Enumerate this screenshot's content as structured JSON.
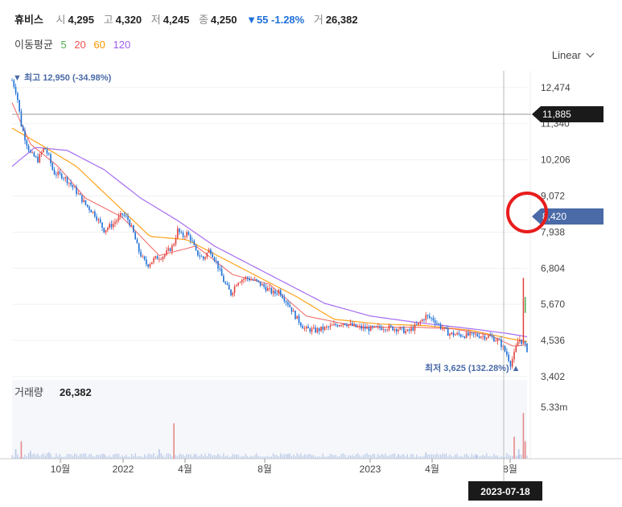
{
  "header": {
    "name": "휴비스",
    "open_label": "시",
    "open": "4,295",
    "high_label": "고",
    "high": "4,320",
    "low_label": "저",
    "low": "4,245",
    "close_label": "종",
    "close": "4,250",
    "change": "▼55 -1.28%",
    "volume_label": "거",
    "volume": "26,382"
  },
  "ma": {
    "title": "이동평균",
    "periods": [
      "5",
      "20",
      "60",
      "120"
    ],
    "colors": [
      "#4caf50",
      "#ef5350",
      "#ff9800",
      "#9c5cf0"
    ]
  },
  "scale_label": "Linear",
  "colors": {
    "up": "#e0413c",
    "down": "#1d6fd6",
    "accent": "#4a6aa8",
    "volume": "#b9c8e6"
  },
  "chart_data": {
    "type": "candlestick",
    "y_ticks": [
      "12,474",
      "11,340",
      "10,206",
      "9,072",
      "7,938",
      "6,804",
      "5,670",
      "4,536",
      "3,402"
    ],
    "x_ticks": [
      "10월",
      "2022",
      "4월",
      "8월",
      "2023",
      "4월",
      "8월"
    ],
    "ylim": [
      3400,
      13000
    ],
    "max_label": "▼ 최고 12,950 (-34.98%)",
    "min_label": "최저 3,625 (132.28%) ▲",
    "price_tags": [
      "11,885",
      "8,420"
    ],
    "crosshair_date": "2023-07-18",
    "volume_label": "거래량",
    "volume_value": "26,382",
    "volume_tick": "5.33m",
    "close_path": [
      [
        0,
        12700
      ],
      [
        5,
        12300
      ],
      [
        10,
        11300
      ],
      [
        15,
        10800
      ],
      [
        20,
        10400
      ],
      [
        28,
        10200
      ],
      [
        35,
        10600
      ],
      [
        40,
        10300
      ],
      [
        45,
        9800
      ],
      [
        55,
        9700
      ],
      [
        62,
        9500
      ],
      [
        70,
        9200
      ],
      [
        80,
        8800
      ],
      [
        90,
        8500
      ],
      [
        100,
        8000
      ],
      [
        110,
        8200
      ],
      [
        120,
        8500
      ],
      [
        127,
        8300
      ],
      [
        132,
        7900
      ],
      [
        137,
        7400
      ],
      [
        142,
        7100
      ],
      [
        147,
        6900
      ],
      [
        155,
        7100
      ],
      [
        165,
        7200
      ],
      [
        175,
        7500
      ],
      [
        180,
        8000
      ],
      [
        185,
        7800
      ],
      [
        190,
        7900
      ],
      [
        195,
        7700
      ],
      [
        200,
        7300
      ],
      [
        208,
        7100
      ],
      [
        215,
        7400
      ],
      [
        222,
        7000
      ],
      [
        230,
        6400
      ],
      [
        238,
        6000
      ],
      [
        245,
        6400
      ],
      [
        255,
        6500
      ],
      [
        265,
        6400
      ],
      [
        275,
        6200
      ],
      [
        285,
        6000
      ],
      [
        290,
        6100
      ],
      [
        300,
        5700
      ],
      [
        308,
        5300
      ],
      [
        318,
        4900
      ],
      [
        330,
        4850
      ],
      [
        345,
        4950
      ],
      [
        360,
        5100
      ],
      [
        375,
        4950
      ],
      [
        390,
        4900
      ],
      [
        405,
        4950
      ],
      [
        420,
        4900
      ],
      [
        430,
        4800
      ],
      [
        440,
        5000
      ],
      [
        450,
        5300
      ],
      [
        458,
        5200
      ],
      [
        465,
        5000
      ],
      [
        475,
        4750
      ],
      [
        490,
        4700
      ],
      [
        505,
        4700
      ],
      [
        520,
        4650
      ],
      [
        530,
        4500
      ],
      [
        538,
        4100
      ],
      [
        542,
        3800
      ],
      [
        546,
        4100
      ],
      [
        551,
        4600
      ],
      [
        556,
        4450
      ],
      [
        560,
        4250
      ]
    ],
    "ma_points": {
      "ma20": [
        [
          0,
          12000
        ],
        [
          20,
          10700
        ],
        [
          50,
          10000
        ],
        [
          80,
          9000
        ],
        [
          120,
          8400
        ],
        [
          160,
          7200
        ],
        [
          200,
          7500
        ],
        [
          240,
          6600
        ],
        [
          280,
          6300
        ],
        [
          320,
          5300
        ],
        [
          380,
          4950
        ],
        [
          440,
          4950
        ],
        [
          480,
          4900
        ],
        [
          520,
          4700
        ],
        [
          545,
          4350
        ],
        [
          560,
          4400
        ]
      ],
      "ma60": [
        [
          0,
          11200
        ],
        [
          30,
          10700
        ],
        [
          70,
          10000
        ],
        [
          110,
          8900
        ],
        [
          150,
          7800
        ],
        [
          190,
          7700
        ],
        [
          230,
          7100
        ],
        [
          270,
          6500
        ],
        [
          310,
          5900
        ],
        [
          350,
          5200
        ],
        [
          400,
          5050
        ],
        [
          450,
          5000
        ],
        [
          500,
          4850
        ],
        [
          540,
          4600
        ],
        [
          560,
          4500
        ]
      ],
      "ma120": [
        [
          0,
          10000
        ],
        [
          25,
          10600
        ],
        [
          60,
          10500
        ],
        [
          100,
          9900
        ],
        [
          140,
          9000
        ],
        [
          180,
          8300
        ],
        [
          220,
          7500
        ],
        [
          260,
          6900
        ],
        [
          300,
          6300
        ],
        [
          340,
          5700
        ],
        [
          390,
          5300
        ],
        [
          440,
          5100
        ],
        [
          500,
          4900
        ],
        [
          540,
          4750
        ],
        [
          560,
          4650
        ]
      ]
    },
    "volume_spikes": [
      [
        4,
        0.12
      ],
      [
        10,
        0.22
      ],
      [
        20,
        0.1
      ],
      [
        40,
        0.08
      ],
      [
        100,
        0.06
      ],
      [
        160,
        0.12
      ],
      [
        176,
        0.45
      ],
      [
        200,
        0.06
      ],
      [
        300,
        0.05
      ],
      [
        420,
        0.05
      ],
      [
        450,
        0.08
      ],
      [
        505,
        0.04
      ],
      [
        546,
        0.28
      ],
      [
        551,
        0.12
      ],
      [
        556,
        0.58
      ],
      [
        558,
        0.22
      ]
    ]
  }
}
